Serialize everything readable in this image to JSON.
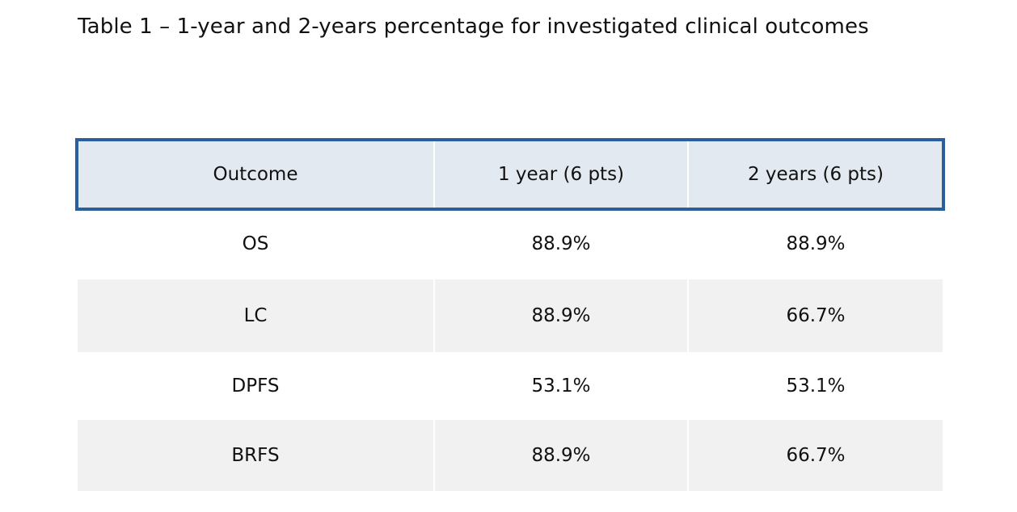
{
  "caption": "Table 1 – 1-year and 2-years percentage for investigated clinical outcomes",
  "table": {
    "headers": [
      "Outcome",
      "1 year (6 pts)",
      "2 years (6 pts)"
    ],
    "rows": [
      [
        "OS",
        "88.9%",
        "88.9%"
      ],
      [
        "LC",
        "88.9%",
        "66.7%"
      ],
      [
        "DPFS",
        "53.1%",
        "53.1%"
      ],
      [
        "BRFS",
        "88.9%",
        "66.7%"
      ]
    ]
  },
  "colors": {
    "header_border": "#2b5f9c",
    "header_background": "#e3e9f0",
    "striped_row_background": "#f1f1f1"
  }
}
